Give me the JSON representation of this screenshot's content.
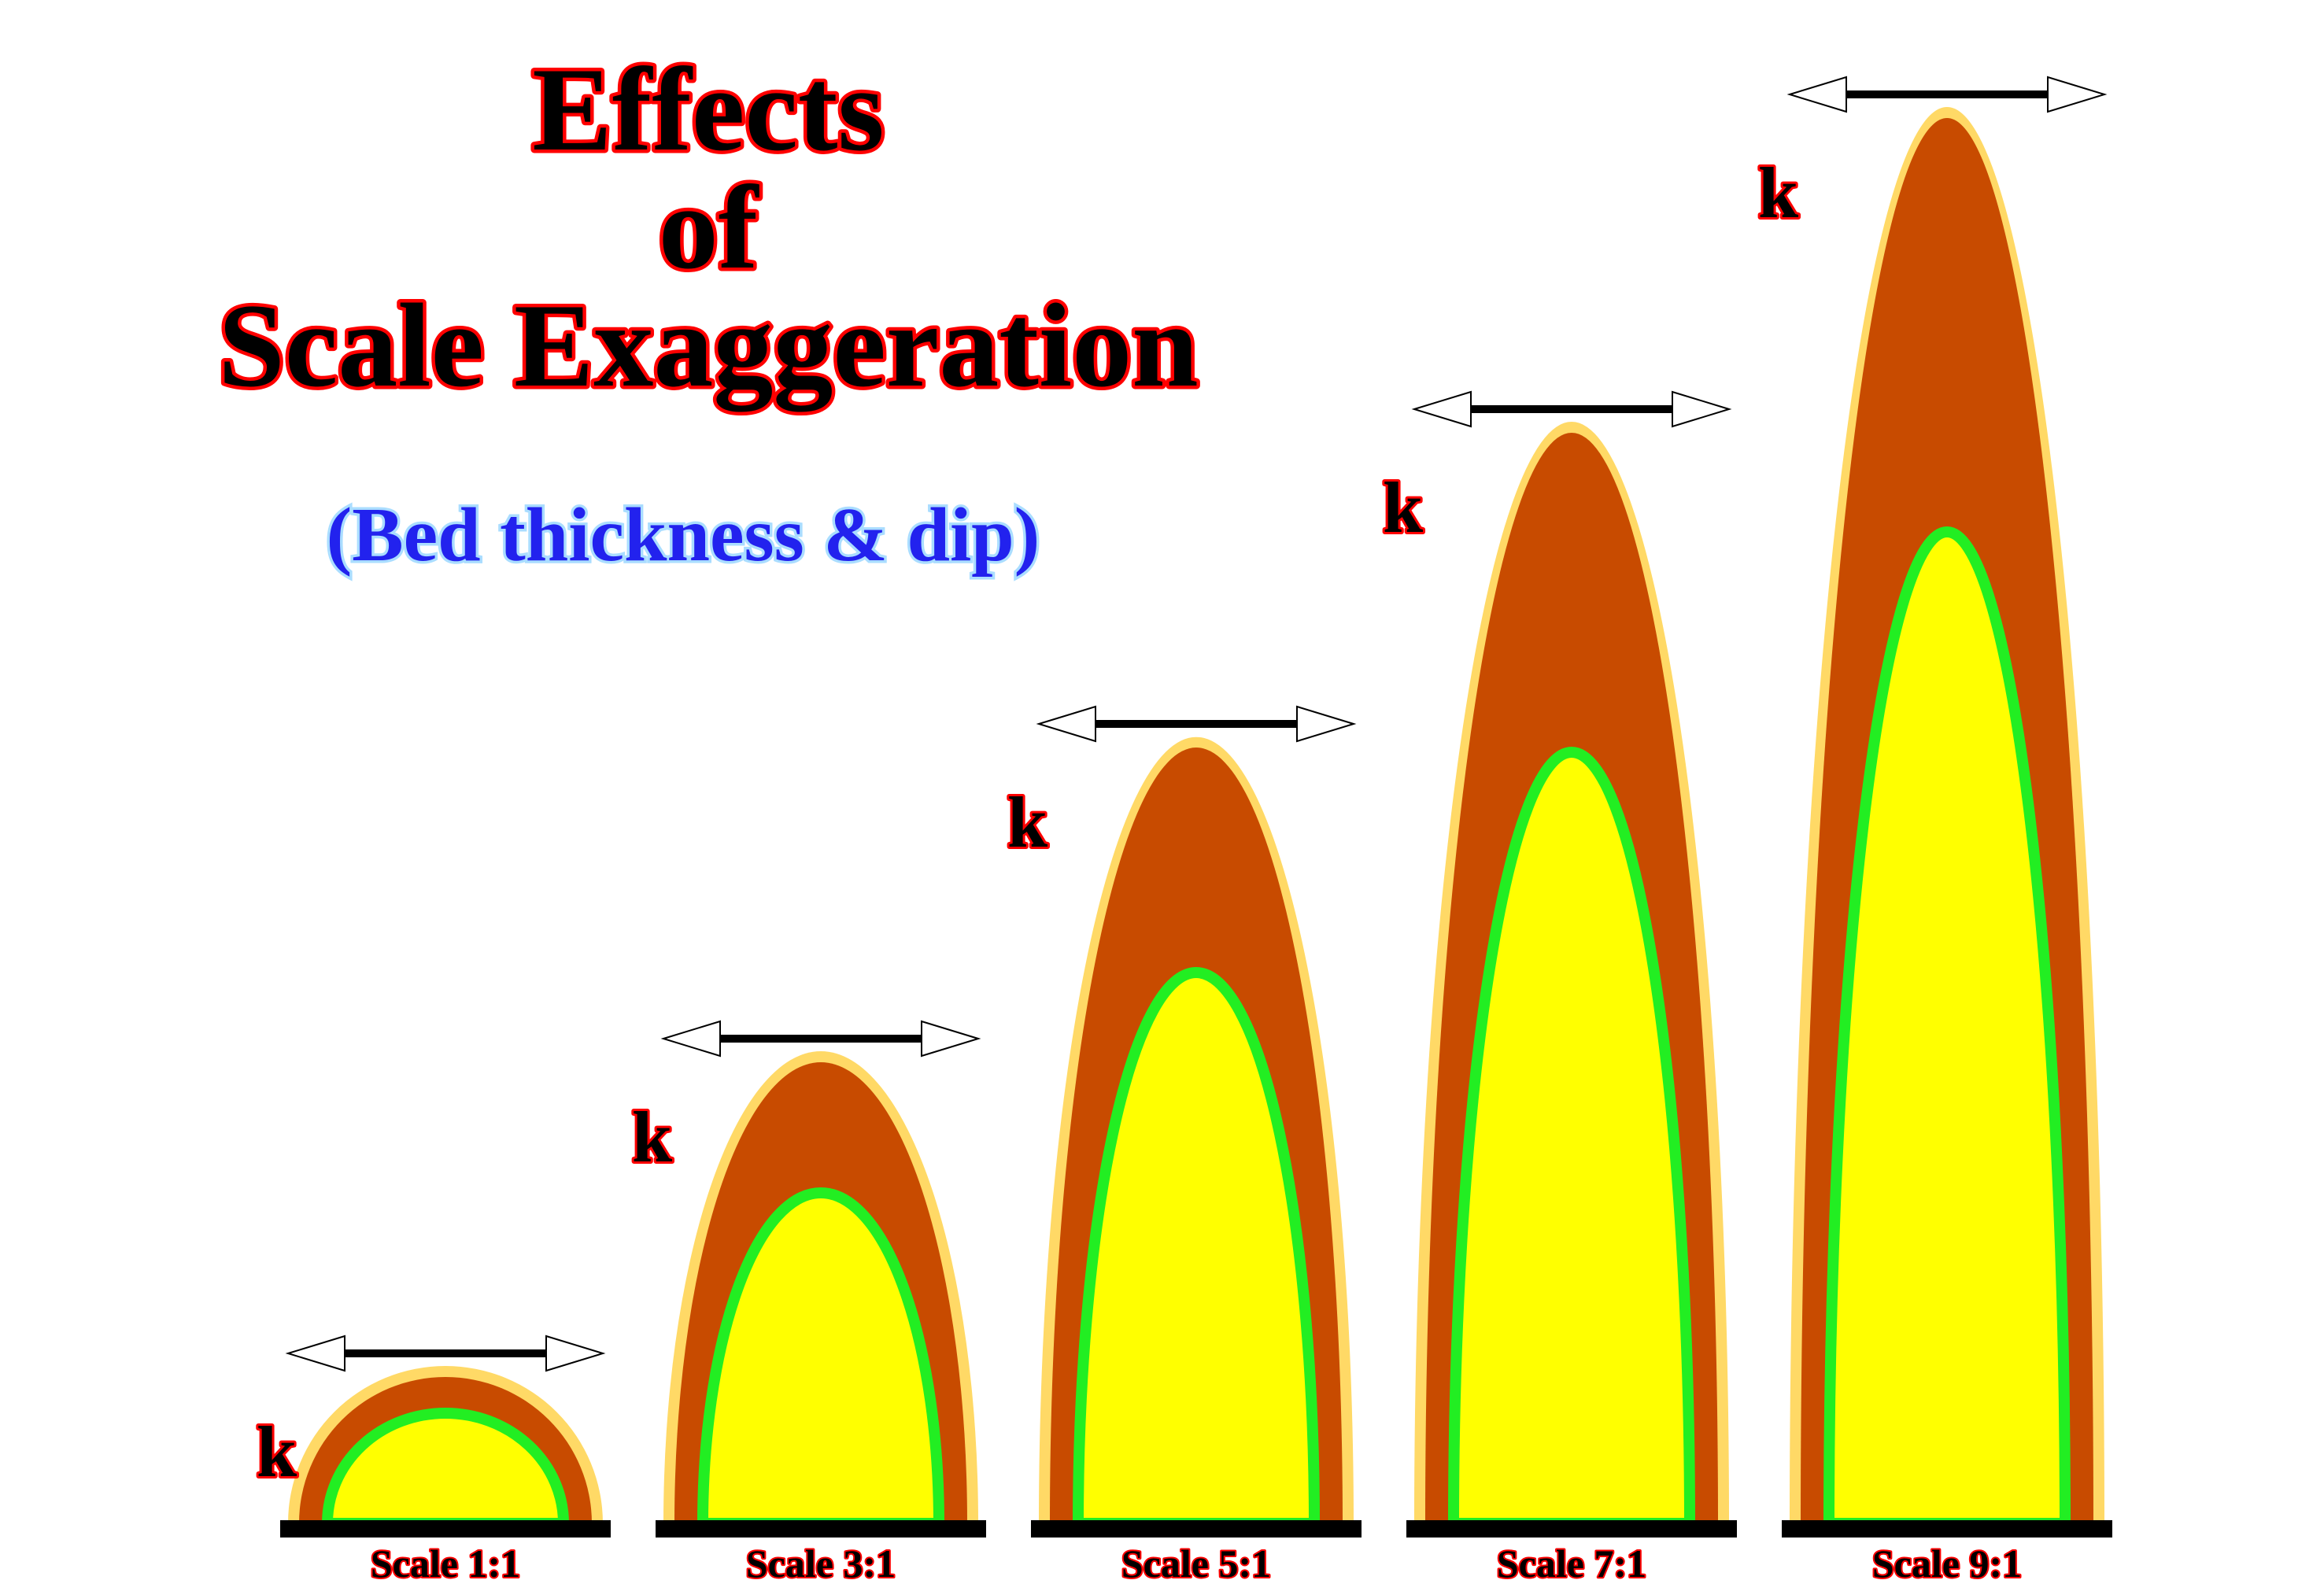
{
  "title": {
    "line1": "Effects",
    "line2": "of",
    "line3": "Scale Exaggeration"
  },
  "subtitle": "(Bed thickness & dip)",
  "colors": {
    "outer_rim": "#ffd966",
    "bed": "#c84b00",
    "core_outline": "#22ee22",
    "core": "#ffff00",
    "base_line": "#000000",
    "title_fill": "#000000",
    "title_stroke": "#ff0000",
    "subtitle_fill": "#2222ee",
    "subtitle_stroke": "#aaddff",
    "label_fill": "#000000",
    "label_stroke": "#ff0000",
    "arrow_fill": "#ffffff",
    "arrow_stroke": "#000000"
  },
  "folds": [
    {
      "exaggeration": 1,
      "k_label": "k",
      "scale_label": "Scale 1:1"
    },
    {
      "exaggeration": 3,
      "k_label": "k",
      "scale_label": "Scale 3:1"
    },
    {
      "exaggeration": 5,
      "k_label": "k",
      "scale_label": "Scale 5:1"
    },
    {
      "exaggeration": 7,
      "k_label": "k",
      "scale_label": "Scale 7:1"
    },
    {
      "exaggeration": 9,
      "k_label": "k",
      "scale_label": "Scale 9:1"
    }
  ]
}
